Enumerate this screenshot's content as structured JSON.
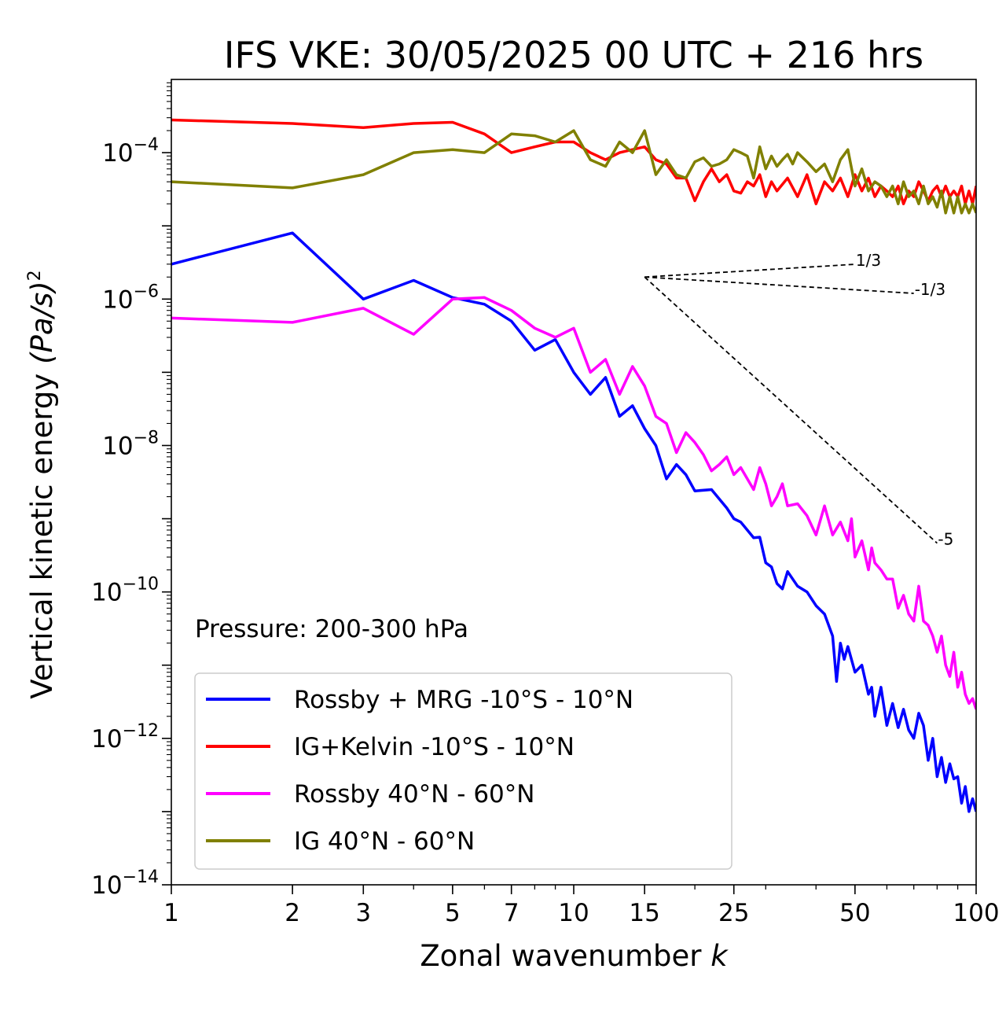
{
  "chart_data": {
    "type": "line",
    "title": "IFS VKE: 30/05/2025 00 UTC + 216 hrs",
    "xlabel": "Zonal wavenumber",
    "xlabel_var": "k",
    "ylabel": "Vertical kinetic energy",
    "ylabel_unit": "(Pa/s)",
    "ylabel_power": "2",
    "xscale": "log",
    "yscale": "log",
    "xlim": [
      1,
      100
    ],
    "ylim": [
      1e-14,
      0.001
    ],
    "xticks": [
      1,
      2,
      3,
      5,
      7,
      10,
      15,
      25,
      50,
      100
    ],
    "xtick_labels": [
      "1",
      "2",
      "3",
      "5",
      "7",
      "10",
      "15",
      "25",
      "50",
      "100"
    ],
    "yticks": [
      1e-14,
      1e-12,
      1e-10,
      1e-08,
      1e-06,
      0.0001
    ],
    "ytick_base": "10",
    "ytick_exponents": [
      "−14",
      "−12",
      "−10",
      "−8",
      "−6",
      "−4"
    ],
    "grid": false,
    "annotation": "Pressure: 200-300 hPa",
    "legend_position": "lower-left",
    "slope_reference": {
      "origin": [
        15,
        2e-06
      ],
      "lines": [
        {
          "label": "1/3",
          "slope": 0.333,
          "x_end": 50
        },
        {
          "label": "-1/3",
          "slope": -0.333,
          "x_end": 70
        },
        {
          "label": "-5",
          "slope": -5,
          "x_end": 80
        }
      ]
    },
    "series": [
      {
        "name": "Rossby + MRG -10°S - 10°N",
        "color": "#0000ff",
        "points": [
          [
            1,
            3e-06
          ],
          [
            2,
            8e-06
          ],
          [
            3,
            1e-06
          ],
          [
            4,
            1.8e-06
          ],
          [
            5,
            1.05e-06
          ],
          [
            6,
            8.5e-07
          ],
          [
            7,
            5e-07
          ],
          [
            8,
            2e-07
          ],
          [
            9,
            2.8e-07
          ],
          [
            10,
            1e-07
          ],
          [
            11,
            5e-08
          ],
          [
            12,
            8.5e-08
          ],
          [
            13,
            2.5e-08
          ],
          [
            14,
            3.5e-08
          ],
          [
            15,
            1.7e-08
          ],
          [
            16,
            1e-08
          ],
          [
            17,
            3.5e-09
          ],
          [
            18,
            5.5e-09
          ],
          [
            19,
            4e-09
          ],
          [
            20,
            2.4e-09
          ],
          [
            22,
            2.5e-09
          ],
          [
            24,
            1.4e-09
          ],
          [
            25,
            1e-09
          ],
          [
            26,
            9e-10
          ],
          [
            27,
            7e-10
          ],
          [
            28,
            5.5e-10
          ],
          [
            29,
            5.6e-10
          ],
          [
            30,
            2.5e-10
          ],
          [
            31,
            2.2e-10
          ],
          [
            32,
            1.3e-10
          ],
          [
            33,
            1.1e-10
          ],
          [
            34,
            1.9e-10
          ],
          [
            36,
            1.2e-10
          ],
          [
            38,
            1e-10
          ],
          [
            40,
            6.5e-11
          ],
          [
            42,
            5e-11
          ],
          [
            44,
            2.5e-11
          ],
          [
            45,
            6e-12
          ],
          [
            46,
            2e-11
          ],
          [
            47,
            1.2e-11
          ],
          [
            48,
            1.8e-11
          ],
          [
            50,
            8e-12
          ],
          [
            52,
            1e-11
          ],
          [
            54,
            4e-12
          ],
          [
            55,
            5e-12
          ],
          [
            56,
            2e-12
          ],
          [
            58,
            5e-12
          ],
          [
            60,
            1.5e-12
          ],
          [
            62,
            3e-12
          ],
          [
            64,
            1.4e-12
          ],
          [
            66,
            2.5e-12
          ],
          [
            68,
            1.3e-12
          ],
          [
            70,
            1e-12
          ],
          [
            72,
            2.2e-12
          ],
          [
            74,
            1.5e-12
          ],
          [
            76,
            5e-13
          ],
          [
            78,
            1e-12
          ],
          [
            80,
            3e-13
          ],
          [
            82,
            5.5e-13
          ],
          [
            84,
            2.5e-13
          ],
          [
            86,
            4.5e-13
          ],
          [
            88,
            2.8e-13
          ],
          [
            90,
            3e-13
          ],
          [
            92,
            1.3e-13
          ],
          [
            94,
            2.2e-13
          ],
          [
            96,
            1e-13
          ],
          [
            98,
            1.5e-13
          ],
          [
            100,
            1e-13
          ]
        ]
      },
      {
        "name": "IG+Kelvin -10°S - 10°N",
        "color": "#ff0000",
        "points": [
          [
            1,
            0.00028
          ],
          [
            2,
            0.00025
          ],
          [
            3,
            0.00022
          ],
          [
            4,
            0.00025
          ],
          [
            5,
            0.00026
          ],
          [
            6,
            0.00018
          ],
          [
            7,
            0.0001
          ],
          [
            8,
            0.00012
          ],
          [
            9,
            0.00014
          ],
          [
            10,
            0.00014
          ],
          [
            11,
            0.0001
          ],
          [
            12,
            8e-05
          ],
          [
            13,
            0.0001
          ],
          [
            14,
            0.00011
          ],
          [
            15,
            0.00012
          ],
          [
            16,
            8e-05
          ],
          [
            17,
            7e-05
          ],
          [
            18,
            4.5e-05
          ],
          [
            19,
            4.5e-05
          ],
          [
            20,
            2.2e-05
          ],
          [
            21,
            4e-05
          ],
          [
            22,
            6e-05
          ],
          [
            23,
            4e-05
          ],
          [
            24,
            5e-05
          ],
          [
            25,
            3e-05
          ],
          [
            26,
            2.8e-05
          ],
          [
            27,
            4e-05
          ],
          [
            28,
            3.5e-05
          ],
          [
            29,
            5e-05
          ],
          [
            30,
            2.5e-05
          ],
          [
            31,
            4e-05
          ],
          [
            32,
            3e-05
          ],
          [
            34,
            4.5e-05
          ],
          [
            36,
            2.5e-05
          ],
          [
            38,
            5e-05
          ],
          [
            40,
            2e-05
          ],
          [
            42,
            4e-05
          ],
          [
            44,
            3e-05
          ],
          [
            46,
            4.5e-05
          ],
          [
            48,
            2.5e-05
          ],
          [
            50,
            5e-05
          ],
          [
            52,
            3e-05
          ],
          [
            54,
            4.5e-05
          ],
          [
            56,
            2.5e-05
          ],
          [
            58,
            3.5e-05
          ],
          [
            60,
            3e-05
          ],
          [
            62,
            2.5e-05
          ],
          [
            64,
            3.5e-05
          ],
          [
            66,
            2e-05
          ],
          [
            68,
            3e-05
          ],
          [
            70,
            2.5e-05
          ],
          [
            72,
            4e-05
          ],
          [
            74,
            3e-05
          ],
          [
            76,
            2.2e-05
          ],
          [
            78,
            3e-05
          ],
          [
            80,
            3.5e-05
          ],
          [
            82,
            2.5e-05
          ],
          [
            84,
            3.5e-05
          ],
          [
            86,
            2.5e-05
          ],
          [
            88,
            3e-05
          ],
          [
            90,
            2.5e-05
          ],
          [
            92,
            3.5e-05
          ],
          [
            94,
            2e-05
          ],
          [
            96,
            3e-05
          ],
          [
            98,
            2e-05
          ],
          [
            100,
            3.5e-05
          ]
        ]
      },
      {
        "name": "Rossby 40°N - 60°N",
        "color": "#ff00ff",
        "points": [
          [
            1,
            5.5e-07
          ],
          [
            2,
            4.8e-07
          ],
          [
            3,
            7.5e-07
          ],
          [
            4,
            3.3e-07
          ],
          [
            5,
            1e-06
          ],
          [
            6,
            1.05e-06
          ],
          [
            7,
            7e-07
          ],
          [
            8,
            4e-07
          ],
          [
            9,
            3e-07
          ],
          [
            10,
            4e-07
          ],
          [
            11,
            1e-07
          ],
          [
            12,
            1.5e-07
          ],
          [
            13,
            5e-08
          ],
          [
            14,
            1.2e-07
          ],
          [
            15,
            6.5e-08
          ],
          [
            16,
            2.5e-08
          ],
          [
            17,
            2e-08
          ],
          [
            18,
            8e-09
          ],
          [
            19,
            1.5e-08
          ],
          [
            20,
            1.1e-08
          ],
          [
            21,
            7.5e-09
          ],
          [
            22,
            4.5e-09
          ],
          [
            23,
            5.5e-09
          ],
          [
            24,
            7e-09
          ],
          [
            25,
            4e-09
          ],
          [
            26,
            5e-09
          ],
          [
            27,
            3.5e-09
          ],
          [
            28,
            2.5e-09
          ],
          [
            29,
            5e-09
          ],
          [
            30,
            3e-09
          ],
          [
            31,
            1.5e-09
          ],
          [
            32,
            2e-09
          ],
          [
            33,
            3e-09
          ],
          [
            34,
            1.5e-09
          ],
          [
            36,
            1.6e-09
          ],
          [
            38,
            1.1e-09
          ],
          [
            40,
            6e-10
          ],
          [
            42,
            1.5e-09
          ],
          [
            44,
            6e-10
          ],
          [
            46,
            9e-10
          ],
          [
            48,
            5e-10
          ],
          [
            49,
            1e-09
          ],
          [
            50,
            3e-10
          ],
          [
            52,
            5e-10
          ],
          [
            54,
            2e-10
          ],
          [
            55,
            4e-10
          ],
          [
            56,
            2.5e-10
          ],
          [
            58,
            2e-10
          ],
          [
            60,
            1.5e-10
          ],
          [
            62,
            1.5e-10
          ],
          [
            64,
            6e-11
          ],
          [
            66,
            9e-11
          ],
          [
            68,
            5e-11
          ],
          [
            70,
            4e-11
          ],
          [
            72,
            1.2e-10
          ],
          [
            74,
            4e-11
          ],
          [
            76,
            3.5e-11
          ],
          [
            78,
            2.5e-11
          ],
          [
            80,
            1.5e-11
          ],
          [
            82,
            2.5e-11
          ],
          [
            84,
            1e-11
          ],
          [
            86,
            7e-12
          ],
          [
            88,
            1.5e-11
          ],
          [
            90,
            5e-12
          ],
          [
            92,
            8e-12
          ],
          [
            94,
            4e-12
          ],
          [
            96,
            3e-12
          ],
          [
            98,
            3.5e-12
          ],
          [
            100,
            2.5e-12
          ]
        ]
      },
      {
        "name": "IG 40°N - 60°N",
        "color": "#808000",
        "points": [
          [
            1,
            4e-05
          ],
          [
            2,
            3.3e-05
          ],
          [
            3,
            5e-05
          ],
          [
            4,
            0.0001
          ],
          [
            5,
            0.00011
          ],
          [
            6,
            0.0001
          ],
          [
            7,
            0.00018
          ],
          [
            8,
            0.00017
          ],
          [
            9,
            0.00014
          ],
          [
            10,
            0.0002
          ],
          [
            11,
            8e-05
          ],
          [
            12,
            6.5e-05
          ],
          [
            13,
            0.00014
          ],
          [
            14,
            0.0001
          ],
          [
            15,
            0.0002
          ],
          [
            16,
            5e-05
          ],
          [
            17,
            8e-05
          ],
          [
            18,
            5e-05
          ],
          [
            19,
            4.5e-05
          ],
          [
            20,
            7.5e-05
          ],
          [
            21,
            8.5e-05
          ],
          [
            22,
            6.5e-05
          ],
          [
            23,
            7e-05
          ],
          [
            24,
            8e-05
          ],
          [
            25,
            0.00011
          ],
          [
            26,
            0.0001
          ],
          [
            27,
            9e-05
          ],
          [
            28,
            4.5e-05
          ],
          [
            29,
            0.00012
          ],
          [
            30,
            6e-05
          ],
          [
            31,
            9e-05
          ],
          [
            32,
            6.5e-05
          ],
          [
            33,
            8e-05
          ],
          [
            34,
            9.5e-05
          ],
          [
            35,
            7e-05
          ],
          [
            36,
            0.0001
          ],
          [
            38,
            7.5e-05
          ],
          [
            40,
            5.5e-05
          ],
          [
            42,
            7e-05
          ],
          [
            44,
            4e-05
          ],
          [
            46,
            8e-05
          ],
          [
            48,
            0.00011
          ],
          [
            50,
            3.5e-05
          ],
          [
            52,
            6e-05
          ],
          [
            54,
            3e-05
          ],
          [
            56,
            4e-05
          ],
          [
            58,
            3.5e-05
          ],
          [
            60,
            2.5e-05
          ],
          [
            62,
            3.5e-05
          ],
          [
            64,
            2e-05
          ],
          [
            66,
            4e-05
          ],
          [
            68,
            2.5e-05
          ],
          [
            70,
            3e-05
          ],
          [
            72,
            2e-05
          ],
          [
            74,
            3.5e-05
          ],
          [
            76,
            2e-05
          ],
          [
            78,
            2.5e-05
          ],
          [
            80,
            1.8e-05
          ],
          [
            82,
            3e-05
          ],
          [
            84,
            1.5e-05
          ],
          [
            86,
            2.5e-05
          ],
          [
            88,
            1.5e-05
          ],
          [
            90,
            2.5e-05
          ],
          [
            92,
            1.5e-05
          ],
          [
            94,
            2e-05
          ],
          [
            96,
            1.5e-05
          ],
          [
            98,
            2e-05
          ],
          [
            100,
            1.5e-05
          ]
        ]
      }
    ]
  }
}
